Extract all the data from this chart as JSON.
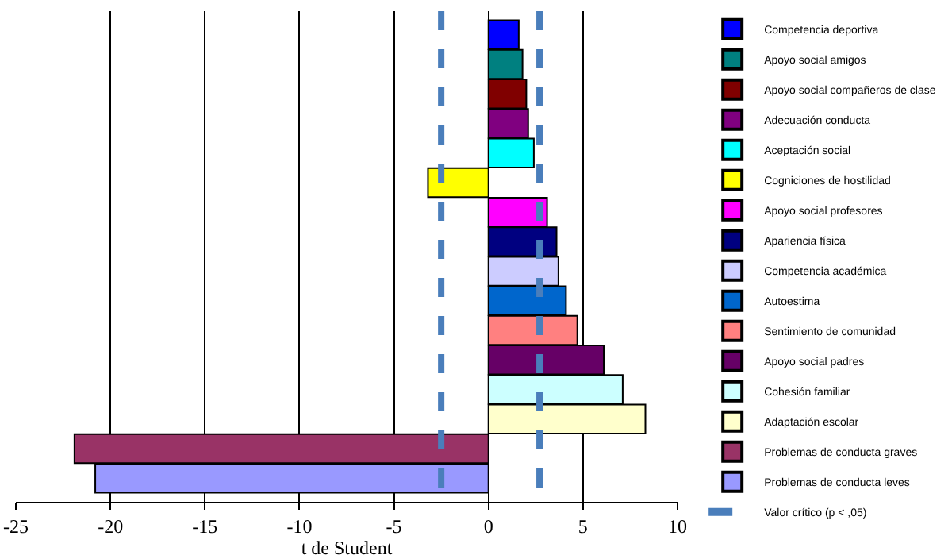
{
  "chart_data": {
    "type": "bar",
    "orientation": "horizontal",
    "xlabel": "t de Student",
    "categories": [
      null,
      null,
      null,
      null,
      null,
      null,
      null,
      null,
      null,
      null,
      null,
      null,
      null,
      null,
      null,
      null
    ],
    "series": [
      {
        "name": "Competencia deportiva",
        "color": "#0000ff",
        "values": [
          1.6,
          null,
          null,
          null,
          null,
          null,
          null,
          null,
          null,
          null,
          null,
          null,
          null,
          null,
          null,
          null
        ]
      },
      {
        "name": "Apoyo social amigos",
        "color": "#008080",
        "values": [
          null,
          1.8,
          null,
          null,
          null,
          null,
          null,
          null,
          null,
          null,
          null,
          null,
          null,
          null,
          null,
          null
        ]
      },
      {
        "name": "Apoyo social compañeros de clase",
        "color": "#800000",
        "values": [
          null,
          null,
          2.0,
          null,
          null,
          null,
          null,
          null,
          null,
          null,
          null,
          null,
          null,
          null,
          null,
          null
        ]
      },
      {
        "name": "Adecuación conducta",
        "color": "#800080",
        "values": [
          null,
          null,
          null,
          2.1,
          null,
          null,
          null,
          null,
          null,
          null,
          null,
          null,
          null,
          null,
          null,
          null
        ]
      },
      {
        "name": "Aceptación social",
        "color": "#00ffff",
        "values": [
          null,
          null,
          null,
          null,
          2.4,
          null,
          null,
          null,
          null,
          null,
          null,
          null,
          null,
          null,
          null,
          null
        ]
      },
      {
        "name": "Cogniciones de hostilidad",
        "color": "#ffff00",
        "values": [
          null,
          null,
          null,
          null,
          null,
          -3.2,
          null,
          null,
          null,
          null,
          null,
          null,
          null,
          null,
          null,
          null
        ]
      },
      {
        "name": "Apoyo social profesores",
        "color": "#ff00ff",
        "values": [
          null,
          null,
          null,
          null,
          null,
          null,
          3.1,
          null,
          null,
          null,
          null,
          null,
          null,
          null,
          null,
          null
        ]
      },
      {
        "name": "Apariencia física",
        "color": "#000080",
        "values": [
          null,
          null,
          null,
          null,
          null,
          null,
          null,
          3.6,
          null,
          null,
          null,
          null,
          null,
          null,
          null,
          null
        ]
      },
      {
        "name": "Competencia académica",
        "color": "#ccccff",
        "values": [
          null,
          null,
          null,
          null,
          null,
          null,
          null,
          null,
          3.7,
          null,
          null,
          null,
          null,
          null,
          null,
          null
        ]
      },
      {
        "name": "Autoestima",
        "color": "#0066cc",
        "values": [
          null,
          null,
          null,
          null,
          null,
          null,
          null,
          null,
          null,
          4.1,
          null,
          null,
          null,
          null,
          null,
          null
        ]
      },
      {
        "name": "Sentimiento de comunidad",
        "color": "#ff8080",
        "values": [
          null,
          null,
          null,
          null,
          null,
          null,
          null,
          null,
          null,
          null,
          4.7,
          null,
          null,
          null,
          null,
          null
        ]
      },
      {
        "name": "Apoyo social padres",
        "color": "#660066",
        "values": [
          null,
          null,
          null,
          null,
          null,
          null,
          null,
          null,
          null,
          null,
          null,
          6.1,
          null,
          null,
          null,
          null
        ]
      },
      {
        "name": "Cohesión familiar",
        "color": "#ccffff",
        "values": [
          null,
          null,
          null,
          null,
          null,
          null,
          null,
          null,
          null,
          null,
          null,
          null,
          7.1,
          null,
          null,
          null
        ]
      },
      {
        "name": "Adaptación escolar",
        "color": "#ffffcc",
        "values": [
          null,
          null,
          null,
          null,
          null,
          null,
          null,
          null,
          null,
          null,
          null,
          null,
          null,
          8.3,
          null,
          null
        ]
      },
      {
        "name": "Problemas de conducta graves",
        "color": "#993366",
        "values": [
          null,
          null,
          null,
          null,
          null,
          null,
          null,
          null,
          null,
          null,
          null,
          null,
          null,
          null,
          -21.9,
          null
        ]
      },
      {
        "name": "Problemas de conducta leves",
        "color": "#9999ff",
        "values": [
          null,
          null,
          null,
          null,
          null,
          null,
          null,
          null,
          null,
          null,
          null,
          null,
          null,
          null,
          null,
          -20.8
        ]
      }
    ],
    "xlim": [
      -25,
      10
    ],
    "xticks": [
      -25,
      -20,
      -15,
      -10,
      -5,
      0,
      5,
      10
    ],
    "ref_lines": [
      {
        "axis": "x",
        "value": -2.5,
        "label": "Valor crítico (p < ,05)",
        "color": "#4a7ebb",
        "line_style": "dashed"
      },
      {
        "axis": "x",
        "value": 2.7,
        "color": "#4a7ebb",
        "line_style": "dashed"
      }
    ],
    "grid": "x",
    "legend": "right"
  }
}
